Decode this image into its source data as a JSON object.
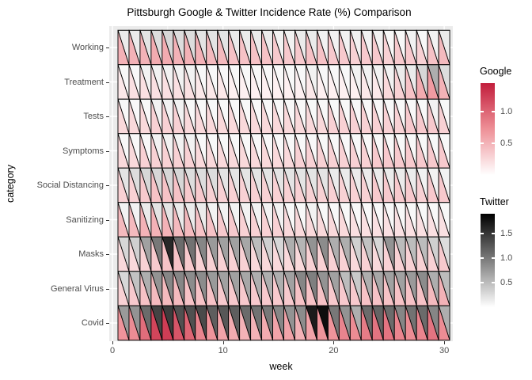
{
  "title": "Pittsburgh Google & Twitter Incidence Rate (%) Comparison",
  "x_axis": {
    "title": "week",
    "major_ticks": [
      0,
      10,
      20,
      30
    ],
    "minor_ticks": [
      5,
      15,
      25
    ],
    "tick_labels": [
      "0",
      "10",
      "20",
      "30"
    ],
    "range": [
      0,
      30
    ]
  },
  "y_axis": {
    "title": "category"
  },
  "legends": {
    "google": {
      "title": "Google",
      "ticks": [
        1.0,
        0.5
      ],
      "tick_labels": [
        "1.0",
        "0.5"
      ],
      "max": 1.45,
      "stops": [
        {
          "t": 0,
          "color": "#FFFFFF"
        },
        {
          "t": 0.5,
          "color": "#EE9097"
        },
        {
          "t": 1,
          "color": "#C21E3C"
        }
      ]
    },
    "twitter": {
      "title": "Twitter",
      "ticks": [
        1.5,
        1.0,
        0.5
      ],
      "tick_labels": [
        "1.5",
        "1.0",
        "0.5"
      ],
      "max": 1.9,
      "stops": [
        {
          "t": 0,
          "color": "#FFFFFF"
        },
        {
          "t": 0.5,
          "color": "#7F7F7F"
        },
        {
          "t": 1,
          "color": "#000000"
        }
      ]
    }
  },
  "colors": {
    "panel_bg": "#EBEBEB",
    "gridline": "#FFFFFF",
    "cell_border": "#000000",
    "axis_text": "#4D4D4D",
    "title_text": "#000000"
  },
  "chart_data": {
    "type": "heatmap",
    "subtype": "split-triangle-cells (lower-left = Google red scale, upper-right = Twitter gray scale)",
    "title": "Pittsburgh Google & Twitter Incidence Rate (%) Comparison",
    "xlabel": "week",
    "ylabel": "category",
    "value_unit": "% incidence rate",
    "weeks": [
      1,
      2,
      3,
      4,
      5,
      6,
      7,
      8,
      9,
      10,
      11,
      12,
      13,
      14,
      15,
      16,
      17,
      18,
      19,
      20,
      21,
      22,
      23,
      24,
      25,
      26,
      27,
      28,
      29,
      30
    ],
    "categories": [
      "Working",
      "Treatment",
      "Tests",
      "Symptoms",
      "Social Distancing",
      "Sanitizing",
      "Masks",
      "General Virus",
      "Covid"
    ],
    "series": [
      {
        "name": "Working",
        "google": [
          0.5,
          0.5,
          0.5,
          0.55,
          0.55,
          0.5,
          0.5,
          0.5,
          0.45,
          0.45,
          0.4,
          0.4,
          0.4,
          0.4,
          0.35,
          0.35,
          0.35,
          0.4,
          0.4,
          0.35,
          0.35,
          0.3,
          0.35,
          0.35,
          0.3,
          0.35,
          0.35,
          0.3,
          0.4,
          0.45
        ],
        "twitter": [
          0.15,
          0.15,
          0.2,
          0.25,
          0.3,
          0.25,
          0.25,
          0.2,
          0.2,
          0.2,
          0.15,
          0.15,
          0.15,
          0.15,
          0.1,
          0.1,
          0.15,
          0.15,
          0.1,
          0.1,
          0.1,
          0.1,
          0.1,
          0.1,
          0.05,
          0.05,
          0.1,
          0.05,
          0.1,
          0.15
        ]
      },
      {
        "name": "Treatment",
        "google": [
          0.15,
          0.2,
          0.2,
          0.2,
          0.2,
          0.2,
          0.2,
          0.15,
          0.15,
          0.15,
          0.1,
          0.1,
          0.1,
          0.1,
          0.1,
          0.1,
          0.1,
          0.15,
          0.1,
          0.1,
          0.1,
          0.1,
          0.15,
          0.15,
          0.25,
          0.3,
          0.4,
          0.55,
          0.65,
          0.5
        ],
        "twitter": [
          0.05,
          0.05,
          0.1,
          0.1,
          0.1,
          0.1,
          0.1,
          0.05,
          0.05,
          0.05,
          0.05,
          0.05,
          0.05,
          0.05,
          0.05,
          0.05,
          0.05,
          0.1,
          0.05,
          0.05,
          0.05,
          0.1,
          0.1,
          0.1,
          0.1,
          0.15,
          0.15,
          0.3,
          0.6,
          0.25
        ]
      },
      {
        "name": "Tests",
        "google": [
          0.25,
          0.25,
          0.25,
          0.3,
          0.3,
          0.3,
          0.25,
          0.25,
          0.25,
          0.25,
          0.25,
          0.25,
          0.25,
          0.25,
          0.25,
          0.25,
          0.25,
          0.25,
          0.25,
          0.3,
          0.3,
          0.3,
          0.3,
          0.3,
          0.3,
          0.3,
          0.35,
          0.35,
          0.35,
          0.3
        ],
        "twitter": [
          0.05,
          0.05,
          0.05,
          0.1,
          0.1,
          0.1,
          0.05,
          0.05,
          0.05,
          0.05,
          0.05,
          0.05,
          0.05,
          0.05,
          0.05,
          0.05,
          0.05,
          0.05,
          0.05,
          0.05,
          0.05,
          0.05,
          0.05,
          0.05,
          0.05,
          0.05,
          0.05,
          0.05,
          0.1,
          0.05
        ]
      },
      {
        "name": "Symptoms",
        "google": [
          0.25,
          0.25,
          0.3,
          0.3,
          0.3,
          0.3,
          0.3,
          0.25,
          0.25,
          0.25,
          0.25,
          0.25,
          0.25,
          0.25,
          0.25,
          0.25,
          0.3,
          0.3,
          0.3,
          0.3,
          0.3,
          0.3,
          0.3,
          0.35,
          0.35,
          0.35,
          0.35,
          0.35,
          0.35,
          0.35
        ],
        "twitter": [
          0.05,
          0.05,
          0.05,
          0.1,
          0.1,
          0.1,
          0.1,
          0.05,
          0.05,
          0.05,
          0.05,
          0.05,
          0.05,
          0.05,
          0.05,
          0.05,
          0.05,
          0.05,
          0.05,
          0.05,
          0.05,
          0.05,
          0.05,
          0.05,
          0.05,
          0.05,
          0.05,
          0.05,
          0.05,
          0.05
        ]
      },
      {
        "name": "Social Distancing",
        "google": [
          0.3,
          0.3,
          0.35,
          0.4,
          0.4,
          0.4,
          0.35,
          0.35,
          0.3,
          0.3,
          0.3,
          0.3,
          0.3,
          0.3,
          0.3,
          0.3,
          0.3,
          0.3,
          0.3,
          0.3,
          0.3,
          0.3,
          0.3,
          0.35,
          0.35,
          0.35,
          0.35,
          0.3,
          0.35,
          0.35
        ],
        "twitter": [
          0.2,
          0.25,
          0.3,
          0.3,
          0.3,
          0.3,
          0.25,
          0.25,
          0.25,
          0.2,
          0.2,
          0.2,
          0.2,
          0.2,
          0.2,
          0.2,
          0.2,
          0.2,
          0.2,
          0.15,
          0.15,
          0.15,
          0.15,
          0.15,
          0.15,
          0.15,
          0.15,
          0.1,
          0.1,
          0.1
        ]
      },
      {
        "name": "Sanitizing",
        "google": [
          0.45,
          0.45,
          0.5,
          0.5,
          0.5,
          0.45,
          0.45,
          0.4,
          0.4,
          0.35,
          0.35,
          0.3,
          0.3,
          0.3,
          0.3,
          0.25,
          0.25,
          0.25,
          0.25,
          0.25,
          0.25,
          0.2,
          0.2,
          0.2,
          0.2,
          0.2,
          0.2,
          0.2,
          0.2,
          0.2
        ],
        "twitter": [
          0.1,
          0.1,
          0.15,
          0.2,
          0.2,
          0.15,
          0.15,
          0.15,
          0.1,
          0.1,
          0.1,
          0.1,
          0.1,
          0.1,
          0.1,
          0.05,
          0.05,
          0.1,
          0.05,
          0.05,
          0.05,
          0.05,
          0.05,
          0.05,
          0.05,
          0.05,
          0.05,
          0.05,
          0.05,
          0.05
        ]
      },
      {
        "name": "Masks",
        "google": [
          0.25,
          0.25,
          0.3,
          0.35,
          0.4,
          0.4,
          0.35,
          0.3,
          0.3,
          0.3,
          0.3,
          0.3,
          0.25,
          0.25,
          0.25,
          0.25,
          0.25,
          0.3,
          0.3,
          0.3,
          0.3,
          0.25,
          0.3,
          0.25,
          0.3,
          0.3,
          0.3,
          0.3,
          0.3,
          0.35
        ],
        "twitter": [
          0.3,
          0.35,
          0.7,
          1.0,
          1.6,
          1.1,
          1.05,
          0.9,
          0.75,
          0.7,
          0.7,
          0.65,
          0.5,
          0.35,
          0.3,
          0.6,
          0.55,
          0.8,
          0.85,
          0.6,
          0.6,
          0.35,
          0.45,
          0.3,
          0.8,
          0.5,
          0.5,
          0.5,
          0.35,
          0.25
        ]
      },
      {
        "name": "General Virus",
        "google": [
          0.3,
          0.35,
          0.4,
          0.45,
          0.45,
          0.45,
          0.4,
          0.4,
          0.4,
          0.35,
          0.35,
          0.35,
          0.35,
          0.35,
          0.35,
          0.35,
          0.4,
          0.4,
          0.4,
          0.35,
          0.35,
          0.35,
          0.4,
          0.4,
          0.4,
          0.4,
          0.4,
          0.4,
          0.45,
          0.5
        ],
        "twitter": [
          0.3,
          0.45,
          0.6,
          0.8,
          0.9,
          0.9,
          0.85,
          0.85,
          0.75,
          0.7,
          0.7,
          0.65,
          0.6,
          0.6,
          0.6,
          0.7,
          0.9,
          0.95,
          0.8,
          0.7,
          0.5,
          0.4,
          0.6,
          0.65,
          0.7,
          0.7,
          0.75,
          0.85,
          0.6,
          0.5
        ]
      },
      {
        "name": "Covid",
        "google": [
          0.7,
          0.75,
          0.95,
          1.2,
          1.25,
          1.1,
          1.0,
          0.8,
          0.7,
          0.6,
          0.55,
          0.5,
          0.5,
          0.55,
          0.6,
          0.6,
          0.5,
          0.6,
          0.7,
          0.7,
          0.8,
          0.75,
          0.85,
          0.9,
          0.9,
          0.8,
          0.75,
          0.8,
          0.9,
          0.75
        ],
        "twitter": [
          0.75,
          0.8,
          1.1,
          1.4,
          1.45,
          1.3,
          1.3,
          1.35,
          1.2,
          1.25,
          1.2,
          1.1,
          1.05,
          1.0,
          0.9,
          0.8,
          0.85,
          1.7,
          1.8,
          1.0,
          0.8,
          0.6,
          1.1,
          1.15,
          1.1,
          0.9,
          1.05,
          1.1,
          0.9,
          0.6
        ]
      }
    ]
  }
}
